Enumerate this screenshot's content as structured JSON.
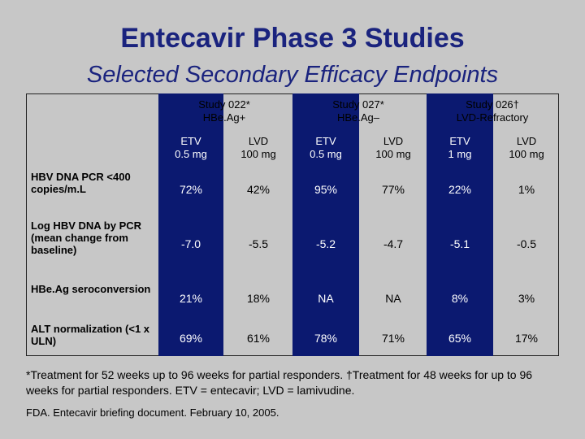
{
  "title": "Entecavir Phase 3 Studies",
  "subtitle": "Selected Secondary Efficacy Endpoints",
  "colors": {
    "title": "#1a237e",
    "highlight": "#0b1970",
    "background": "#c7c7c7"
  },
  "studies": [
    {
      "name": "Study 022*",
      "population": "HBe.Ag+"
    },
    {
      "name": "Study 027*",
      "population": "HBe.Ag–"
    },
    {
      "name": "Study 026†",
      "population": "LVD-Refractory"
    }
  ],
  "columns": [
    {
      "drug": "ETV",
      "dose": "0.5 mg"
    },
    {
      "drug": "LVD",
      "dose": "100 mg"
    },
    {
      "drug": "ETV",
      "dose": "0.5 mg"
    },
    {
      "drug": "LVD",
      "dose": "100 mg"
    },
    {
      "drug": "ETV",
      "dose": "1 mg"
    },
    {
      "drug": "LVD",
      "dose": "100 mg"
    }
  ],
  "rows": [
    {
      "label": "HBV DNA PCR <400 copies/m.L",
      "values": [
        "72%",
        "42%",
        "95%",
        "77%",
        "22%",
        "1%"
      ]
    },
    {
      "label": "Log HBV DNA by PCR (mean change from baseline)",
      "values": [
        "-7.0",
        "-5.5",
        "-5.2",
        "-4.7",
        "-5.1",
        "-0.5"
      ]
    },
    {
      "label": "HBe.Ag seroconversion",
      "values": [
        "21%",
        "18%",
        "NA",
        "NA",
        "8%",
        "3%"
      ]
    },
    {
      "label": "ALT normalization (<1 x ULN)",
      "values": [
        "69%",
        "61%",
        "78%",
        "71%",
        "65%",
        "17%"
      ]
    }
  ],
  "footnote": "*Treatment for 52 weeks up to 96 weeks for partial responders. †Treatment for 48 weeks for up to 96 weeks for partial responders. ETV = entecavir; LVD = lamivudine.",
  "source": "FDA. Entecavir briefing document. February 10, 2005."
}
